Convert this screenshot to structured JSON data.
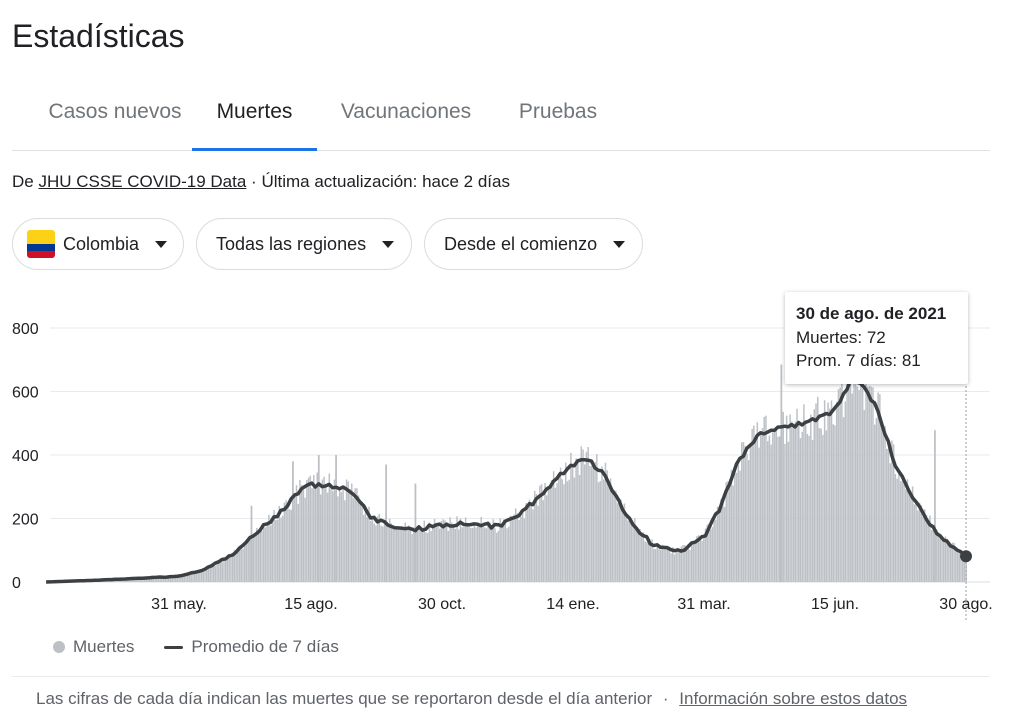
{
  "page": {
    "title": "Estadísticas"
  },
  "tabs": [
    {
      "label": "Casos nuevos"
    },
    {
      "label": "Muertes",
      "active": true
    },
    {
      "label": "Vacunaciones"
    },
    {
      "label": "Pruebas"
    }
  ],
  "source": {
    "prefix": "De",
    "link": "JHU CSSE COVID-19 Data",
    "separator": "·",
    "updated": "Última actualización: hace 2 días"
  },
  "filters": {
    "country": "Colombia",
    "region": "Todas las regiones",
    "range": "Desde el comienzo"
  },
  "tooltip": {
    "date": "30 de ago. de 2021",
    "deaths": "Muertes: 72",
    "avg": "Prom. 7 días: 81"
  },
  "legend": {
    "bars": "Muertes",
    "line": "Promedio de 7 días"
  },
  "footer": {
    "text": "Las cifras de cada día indican las muertes que se reportaron desde el día anterior",
    "separator": "·",
    "link": "Información sobre estos datos"
  },
  "colors": {
    "bars": "#bdc1c6",
    "line": "#3c4043",
    "accent": "#1a73e8",
    "grid": "#e8eaed"
  },
  "chart_data": {
    "type": "bar",
    "ylim": [
      0,
      800
    ],
    "yticks": [
      0,
      200,
      400,
      600,
      800
    ],
    "x_tick_labels": [
      "31 may.",
      "15 ago.",
      "30 oct.",
      "14 ene.",
      "31 mar.",
      "15 jun.",
      "30 ago."
    ],
    "grid": true,
    "legend": "bottom",
    "series": [
      {
        "name": "Muertes",
        "type": "bar"
      },
      {
        "name": "Promedio de 7 días",
        "type": "line"
      }
    ],
    "avg_keypoints": [
      {
        "x": "2020-03-15",
        "y": 0
      },
      {
        "x": "2020-04-10",
        "y": 5
      },
      {
        "x": "2020-05-01",
        "y": 10
      },
      {
        "x": "2020-05-31",
        "y": 18
      },
      {
        "x": "2020-06-15",
        "y": 40
      },
      {
        "x": "2020-07-01",
        "y": 85
      },
      {
        "x": "2020-07-10",
        "y": 135
      },
      {
        "x": "2020-07-25",
        "y": 200
      },
      {
        "x": "2020-08-10",
        "y": 290
      },
      {
        "x": "2020-08-15",
        "y": 305
      },
      {
        "x": "2020-08-25",
        "y": 305
      },
      {
        "x": "2020-09-01",
        "y": 300
      },
      {
        "x": "2020-09-10",
        "y": 270
      },
      {
        "x": "2020-09-20",
        "y": 200
      },
      {
        "x": "2020-10-01",
        "y": 175
      },
      {
        "x": "2020-10-15",
        "y": 165
      },
      {
        "x": "2020-10-30",
        "y": 180
      },
      {
        "x": "2020-11-15",
        "y": 185
      },
      {
        "x": "2020-12-01",
        "y": 175
      },
      {
        "x": "2020-12-10",
        "y": 200
      },
      {
        "x": "2020-12-25",
        "y": 260
      },
      {
        "x": "2021-01-05",
        "y": 330
      },
      {
        "x": "2021-01-14",
        "y": 370
      },
      {
        "x": "2021-01-22",
        "y": 390
      },
      {
        "x": "2021-02-01",
        "y": 340
      },
      {
        "x": "2021-02-15",
        "y": 200
      },
      {
        "x": "2021-03-01",
        "y": 120
      },
      {
        "x": "2021-03-15",
        "y": 95
      },
      {
        "x": "2021-03-20",
        "y": 105
      },
      {
        "x": "2021-03-31",
        "y": 140
      },
      {
        "x": "2021-04-10",
        "y": 240
      },
      {
        "x": "2021-04-20",
        "y": 380
      },
      {
        "x": "2021-05-01",
        "y": 460
      },
      {
        "x": "2021-05-10",
        "y": 480
      },
      {
        "x": "2021-05-20",
        "y": 490
      },
      {
        "x": "2021-06-01",
        "y": 505
      },
      {
        "x": "2021-06-15",
        "y": 540
      },
      {
        "x": "2021-06-25",
        "y": 640
      },
      {
        "x": "2021-07-01",
        "y": 620
      },
      {
        "x": "2021-07-10",
        "y": 540
      },
      {
        "x": "2021-07-20",
        "y": 370
      },
      {
        "x": "2021-08-01",
        "y": 250
      },
      {
        "x": "2021-08-15",
        "y": 140
      },
      {
        "x": "2021-08-30",
        "y": 81
      }
    ],
    "spikes": [
      {
        "x": "2020-07-12",
        "y": 240
      },
      {
        "x": "2020-08-05",
        "y": 380
      },
      {
        "x": "2020-08-20",
        "y": 400
      },
      {
        "x": "2020-08-30",
        "y": 400
      },
      {
        "x": "2020-09-28",
        "y": 370
      },
      {
        "x": "2020-10-15",
        "y": 310
      },
      {
        "x": "2021-05-15",
        "y": 685
      },
      {
        "x": "2021-08-12",
        "y": 478
      }
    ],
    "highlight": {
      "x": "2021-08-30",
      "deaths": 72,
      "avg": 81
    }
  }
}
